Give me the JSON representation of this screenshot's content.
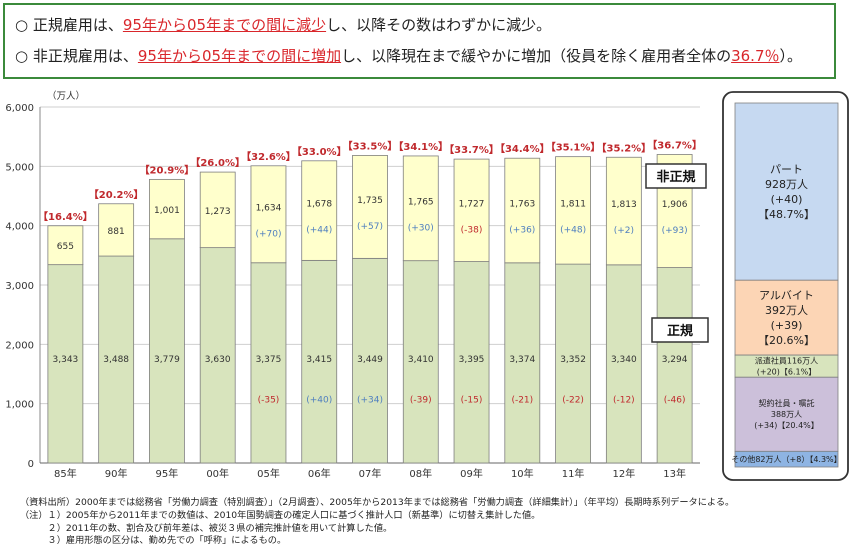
{
  "summary": {
    "line1": {
      "bullet": "○",
      "a": "正規雇用は、",
      "b": "95年から05年までの間に減少",
      "c": "し、以降その数はわずかに減少。"
    },
    "line2": {
      "bullet": "○",
      "a": "非正規雇用は、",
      "b": "95年から05年までの間に増加",
      "c": "し、以降現在まで緩やかに増加（役員を除く雇用者全体の",
      "d": "36.7％",
      "e": "）。"
    }
  },
  "colors": {
    "regular": "#d8e4bd",
    "nonregular": "#ffffcc",
    "ratio_text": "#c0292d",
    "neg_text": "#c0292d",
    "pos_text": "#4f7fbf",
    "frame": "#3b8a3b"
  },
  "chart_data": {
    "type": "bar",
    "stacked": true,
    "ylabel": "（万人）",
    "ylim": [
      0,
      6000
    ],
    "yticks": [
      "0",
      "1,000",
      "2,000",
      "3,000",
      "4,000",
      "5,000",
      "6,000"
    ],
    "grid": true,
    "categories": [
      "85年",
      "90年",
      "95年",
      "00年",
      "05年",
      "06年",
      "07年",
      "08年",
      "09年",
      "10年",
      "11年",
      "12年",
      "13年"
    ],
    "series": [
      {
        "name": "正規",
        "values": [
          3343,
          3488,
          3779,
          3630,
          3375,
          3415,
          3449,
          3410,
          3395,
          3374,
          3352,
          3340,
          3294
        ],
        "labels": [
          "3,343",
          "3,488",
          "3,779",
          "3,630",
          "3,375",
          "3,415",
          "3,449",
          "3,410",
          "3,395",
          "3,374",
          "3,352",
          "3,340",
          "3,294"
        ],
        "changes": [
          "",
          "",
          "",
          "",
          "(-35)",
          "(+40)",
          "(+34)",
          "(-39)",
          "(-15)",
          "(-21)",
          "(-22)",
          "(-12)",
          "(-46)"
        ]
      },
      {
        "name": "非正規",
        "values": [
          655,
          881,
          1001,
          1273,
          1634,
          1678,
          1735,
          1765,
          1727,
          1763,
          1811,
          1813,
          1906
        ],
        "labels": [
          "655",
          "881",
          "1,001",
          "1,273",
          "1,634",
          "1,678",
          "1,735",
          "1,765",
          "1,727",
          "1,763",
          "1,811",
          "1,813",
          "1,906"
        ],
        "changes": [
          "",
          "",
          "",
          "",
          "(+70)",
          "(+44)",
          "(+57)",
          "(+30)",
          "(-38)",
          "(+36)",
          "(+48)",
          "(+2)",
          "(+93)"
        ]
      }
    ],
    "ratios": [
      "【16.4%】",
      "【20.2%】",
      "【20.9%】",
      "【26.0%】",
      "【32.6%】",
      "【33.0%】",
      "【33.5%】",
      "【34.1%】",
      "【33.7%】",
      "【34.4%】",
      "【35.1%】",
      "【35.2%】",
      "【36.7%】"
    ],
    "series_labels": {
      "nonregular": "非正規",
      "regular": "正規"
    },
    "breakdown": {
      "title": "",
      "segments": [
        {
          "value": 928,
          "color": "#c6d9f1",
          "lines": [
            "パート",
            "928万人",
            "(+40)",
            "【48.7%】"
          ]
        },
        {
          "value": 392,
          "color": "#fcd5b5",
          "lines": [
            "アルバイト",
            "392万人",
            "(+39)",
            "【20.6%】"
          ]
        },
        {
          "value": 116,
          "color": "#d8e4bd",
          "lines": [
            "派遣社員116万人",
            "(+20)【6.1%】"
          ]
        },
        {
          "value": 388,
          "color": "#ccc0da",
          "lines": [
            "契約社員・嘱託",
            "388万人",
            "(+34)【20.4%】"
          ]
        },
        {
          "value": 82,
          "color": "#8eb4e3",
          "lines": [
            "その他82万人（+8）【4.3%】"
          ]
        }
      ]
    }
  },
  "notes": [
    "（資料出所）2000年までは総務省「労働力調査（特別調査）」（2月調査）、2005年から2013年までは総務省「労働力調査（詳細集計）」（年平均）長期時系列データによる。",
    "（注）１）2005年から2011年までの数値は、2010年国勢調査の確定人口に基づく推計人口（新基準）に切替え集計した値。",
    "　　　２）2011年の数、割合及び前年差は、被災３県の補完推計値を用いて計算した値。",
    "　　　３）雇用形態の区分は、勤め先での「呼称」によるもの。"
  ]
}
